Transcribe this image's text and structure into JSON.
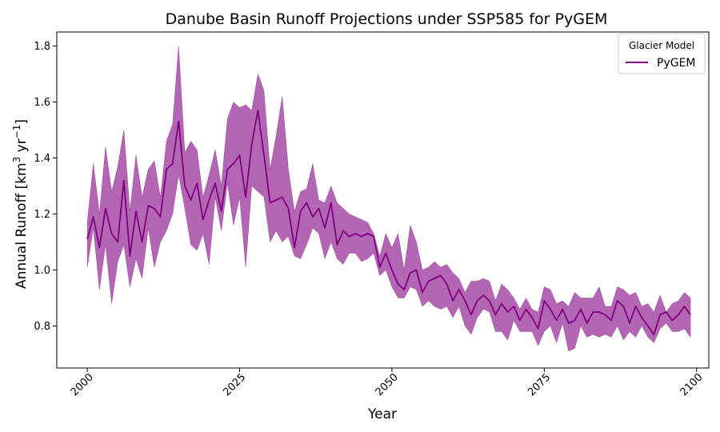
{
  "chart_data": {
    "type": "line",
    "title": "Danube Basin Runoff Projections under SSP585 for PyGEM",
    "xlabel": "Year",
    "ylabel": "Annual Runoff [km",
    "ylabel_sup1": "3",
    "ylabel_mid": " yr",
    "ylabel_sup2": "−1",
    "ylabel_end": "]",
    "xlim": [
      1995,
      2102
    ],
    "ylim": [
      0.65,
      1.85
    ],
    "x_ticks": [
      2000,
      2025,
      2050,
      2075,
      2100
    ],
    "y_ticks": [
      0.8,
      1.0,
      1.2,
      1.4,
      1.6,
      1.8
    ],
    "grid": false,
    "legend": {
      "title": "Glacier Model",
      "placement": "top-right",
      "entries": [
        "PyGEM"
      ]
    },
    "colors": {
      "line": "#800080",
      "band": "#800080"
    },
    "series": [
      {
        "name": "PyGEM",
        "x_start": 2000,
        "mean": [
          1.11,
          1.19,
          1.08,
          1.22,
          1.13,
          1.1,
          1.32,
          1.05,
          1.21,
          1.1,
          1.23,
          1.22,
          1.19,
          1.36,
          1.38,
          1.53,
          1.3,
          1.25,
          1.31,
          1.18,
          1.25,
          1.31,
          1.21,
          1.36,
          1.38,
          1.41,
          1.26,
          1.45,
          1.57,
          1.41,
          1.24,
          1.25,
          1.26,
          1.22,
          1.08,
          1.21,
          1.24,
          1.19,
          1.22,
          1.15,
          1.24,
          1.09,
          1.14,
          1.12,
          1.13,
          1.12,
          1.13,
          1.12,
          1.01,
          1.06,
          1.0,
          0.95,
          0.93,
          0.99,
          1.0,
          0.92,
          0.96,
          0.97,
          0.98,
          0.95,
          0.89,
          0.93,
          0.89,
          0.84,
          0.89,
          0.91,
          0.89,
          0.84,
          0.88,
          0.85,
          0.87,
          0.82,
          0.86,
          0.83,
          0.79,
          0.89,
          0.86,
          0.82,
          0.86,
          0.81,
          0.82,
          0.86,
          0.81,
          0.85,
          0.85,
          0.84,
          0.82,
          0.89,
          0.87,
          0.81,
          0.87,
          0.83,
          0.8,
          0.77,
          0.84,
          0.85,
          0.82,
          0.84,
          0.87,
          0.84
        ],
        "upper": [
          1.17,
          1.38,
          1.2,
          1.44,
          1.28,
          1.37,
          1.5,
          1.21,
          1.41,
          1.26,
          1.36,
          1.39,
          1.26,
          1.46,
          1.52,
          1.8,
          1.42,
          1.46,
          1.43,
          1.26,
          1.34,
          1.43,
          1.3,
          1.54,
          1.6,
          1.58,
          1.59,
          1.57,
          1.7,
          1.64,
          1.36,
          1.48,
          1.62,
          1.36,
          1.21,
          1.28,
          1.29,
          1.38,
          1.25,
          1.24,
          1.3,
          1.24,
          1.22,
          1.2,
          1.19,
          1.18,
          1.17,
          1.13,
          1.05,
          1.13,
          1.08,
          1.13,
          1.0,
          1.16,
          1.1,
          1.0,
          1.01,
          1.03,
          1.01,
          1.02,
          0.99,
          0.97,
          0.92,
          0.96,
          0.96,
          0.97,
          0.96,
          0.89,
          0.95,
          0.93,
          0.9,
          0.86,
          0.9,
          0.86,
          0.85,
          0.94,
          0.93,
          0.88,
          0.89,
          0.87,
          0.92,
          0.9,
          0.9,
          0.9,
          0.94,
          0.87,
          0.87,
          0.94,
          0.93,
          0.91,
          0.92,
          0.87,
          0.88,
          0.85,
          0.91,
          0.85,
          0.88,
          0.89,
          0.92,
          0.9
        ],
        "lower": [
          1.01,
          1.15,
          0.93,
          1.09,
          0.88,
          1.03,
          1.09,
          0.94,
          1.04,
          0.97,
          1.15,
          1.01,
          1.1,
          1.14,
          1.2,
          1.34,
          1.22,
          1.09,
          1.07,
          1.13,
          1.02,
          1.26,
          1.14,
          1.31,
          1.16,
          1.26,
          1.01,
          1.3,
          1.28,
          1.26,
          1.1,
          1.14,
          1.1,
          1.12,
          1.05,
          1.04,
          1.09,
          1.15,
          1.13,
          1.04,
          1.1,
          1.04,
          1.02,
          1.06,
          1.06,
          1.03,
          1.04,
          1.06,
          0.98,
          1.0,
          0.94,
          0.9,
          0.9,
          0.94,
          0.93,
          0.87,
          0.89,
          0.87,
          0.86,
          0.87,
          0.83,
          0.87,
          0.8,
          0.77,
          0.83,
          0.86,
          0.85,
          0.78,
          0.78,
          0.75,
          0.82,
          0.78,
          0.78,
          0.78,
          0.73,
          0.78,
          0.8,
          0.74,
          0.81,
          0.71,
          0.72,
          0.8,
          0.76,
          0.77,
          0.76,
          0.77,
          0.76,
          0.8,
          0.75,
          0.78,
          0.76,
          0.8,
          0.76,
          0.74,
          0.79,
          0.81,
          0.78,
          0.78,
          0.79,
          0.76
        ]
      }
    ]
  }
}
